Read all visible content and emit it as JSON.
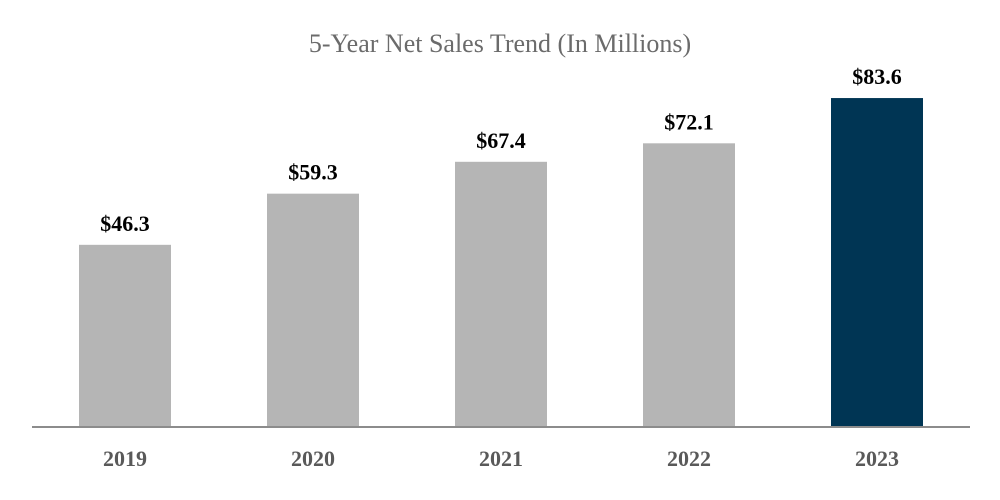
{
  "chart_data": {
    "type": "bar",
    "title": "5-Year Net Sales Trend (In Millions)",
    "xlabel": "",
    "ylabel": "",
    "categories": [
      "2019",
      "2020",
      "2021",
      "2022",
      "2023"
    ],
    "values": [
      46.3,
      59.3,
      67.4,
      72.1,
      83.6
    ],
    "data_labels": [
      "$46.3",
      "$59.3",
      "$67.4",
      "$72.1",
      "$83.6"
    ],
    "ylim": [
      0,
      92
    ],
    "grid": false,
    "legend": "none",
    "colors": {
      "default_bar": "#b5b5b5",
      "highlight_bar": "#003554",
      "axis_line": "#8c8c8c",
      "title": "#6b6b6b",
      "tick_label": "#595959",
      "data_label": "#000000"
    },
    "highlight_category": "2023"
  }
}
